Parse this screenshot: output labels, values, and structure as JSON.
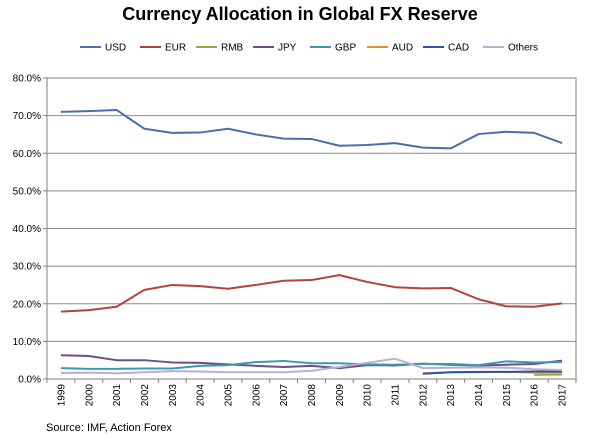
{
  "chart_data": {
    "type": "line",
    "title": "Currency Allocation in Global FX Reserve",
    "xlabel": "",
    "ylabel": "",
    "ylim": [
      0,
      80
    ],
    "y_ticks": [
      "0.0%",
      "10.0%",
      "20.0%",
      "30.0%",
      "40.0%",
      "50.0%",
      "60.0%",
      "70.0%",
      "80.0%"
    ],
    "categories": [
      "1999",
      "2000",
      "2001",
      "2002",
      "2003",
      "2004",
      "2005",
      "2006",
      "2007",
      "2008",
      "2009",
      "2010",
      "2011",
      "2012",
      "2013",
      "2014",
      "2015",
      "2016",
      "2017"
    ],
    "legend_position": "top",
    "grid": "horizontal",
    "series": [
      {
        "name": "USD",
        "color": "#4a6fa8",
        "values": [
          71.0,
          71.2,
          71.5,
          66.5,
          65.4,
          65.5,
          66.5,
          65.0,
          63.9,
          63.8,
          62.0,
          62.2,
          62.7,
          61.5,
          61.3,
          65.1,
          65.7,
          65.4,
          62.7
        ]
      },
      {
        "name": "EUR",
        "color": "#b5413d",
        "values": [
          17.9,
          18.3,
          19.2,
          23.7,
          25.0,
          24.7,
          24.0,
          25.0,
          26.1,
          26.3,
          27.6,
          25.8,
          24.4,
          24.1,
          24.2,
          21.2,
          19.3,
          19.2,
          20.1
        ]
      },
      {
        "name": "RMB",
        "color": "#8fad3d",
        "values": [
          null,
          null,
          null,
          null,
          null,
          null,
          null,
          null,
          null,
          null,
          null,
          null,
          null,
          null,
          null,
          null,
          null,
          1.1,
          1.2
        ]
      },
      {
        "name": "JPY",
        "color": "#6e4a8e",
        "values": [
          6.3,
          6.1,
          5.0,
          5.0,
          4.4,
          4.3,
          3.9,
          3.5,
          3.2,
          3.5,
          2.9,
          3.7,
          3.6,
          4.1,
          3.8,
          3.6,
          3.8,
          4.0,
          4.9
        ]
      },
      {
        "name": "GBP",
        "color": "#3c9aae",
        "values": [
          2.9,
          2.7,
          2.7,
          2.8,
          2.8,
          3.5,
          3.7,
          4.5,
          4.8,
          4.2,
          4.2,
          3.9,
          3.8,
          4.0,
          4.0,
          3.7,
          4.7,
          4.4,
          4.5
        ]
      },
      {
        "name": "AUD",
        "color": "#e8902e",
        "values": [
          null,
          null,
          null,
          null,
          null,
          null,
          null,
          null,
          null,
          null,
          null,
          null,
          null,
          1.5,
          1.8,
          1.8,
          1.9,
          1.7,
          1.8
        ]
      },
      {
        "name": "CAD",
        "color": "#2a55a0",
        "values": [
          null,
          null,
          null,
          null,
          null,
          null,
          null,
          null,
          null,
          null,
          null,
          null,
          null,
          1.4,
          1.8,
          1.9,
          1.9,
          2.0,
          2.0
        ]
      },
      {
        "name": "Others",
        "color": "#b7b0d6",
        "values": [
          1.6,
          1.7,
          1.5,
          1.8,
          2.1,
          2.0,
          1.8,
          1.8,
          1.8,
          2.2,
          3.2,
          4.3,
          5.4,
          2.9,
          3.0,
          3.1,
          3.0,
          2.6,
          2.4
        ]
      }
    ],
    "source": "Source: IMF, Action Forex"
  }
}
